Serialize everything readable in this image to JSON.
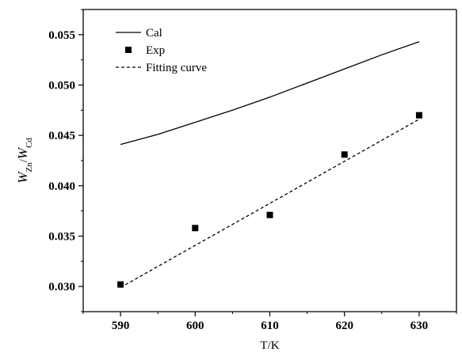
{
  "chart_data": {
    "type": "line",
    "title": "",
    "xlabel": "T/K",
    "ylabel": {
      "parts": [
        {
          "text": "W",
          "style": "italic"
        },
        {
          "text": "Zn",
          "style": "sub"
        },
        {
          "text": "/",
          "style": "normal"
        },
        {
          "text": "W",
          "style": "italic"
        },
        {
          "text": "Cd",
          "style": "sub"
        }
      ]
    },
    "xlim": [
      585,
      635
    ],
    "ylim": [
      0.0275,
      0.0575
    ],
    "xticks": [
      590,
      600,
      610,
      620,
      630
    ],
    "xtick_labels": [
      "590",
      "600",
      "610",
      "620",
      "630"
    ],
    "yticks": [
      0.03,
      0.035,
      0.04,
      0.045,
      0.05,
      0.055
    ],
    "ytick_labels": [
      "0.030",
      "0.035",
      "0.040",
      "0.045",
      "0.050",
      "0.055"
    ],
    "grid": false,
    "legend_position": "top-left",
    "series": [
      {
        "name": "Cal",
        "kind": "line",
        "dash": "solid",
        "x": [
          590,
          595,
          600,
          605,
          610,
          615,
          620,
          625,
          630
        ],
        "y": [
          0.0441,
          0.0451,
          0.0463,
          0.0475,
          0.0488,
          0.0502,
          0.0516,
          0.053,
          0.0543
        ]
      },
      {
        "name": "Exp",
        "kind": "scatter",
        "marker": "square",
        "x": [
          590,
          600,
          610,
          620,
          630
        ],
        "y": [
          0.0302,
          0.0358,
          0.0371,
          0.0431,
          0.047
        ]
      },
      {
        "name": "Fitting curve",
        "kind": "line",
        "dash": "dashed",
        "x": [
          590,
          630
        ],
        "y": [
          0.0299,
          0.0466
        ]
      }
    ]
  }
}
